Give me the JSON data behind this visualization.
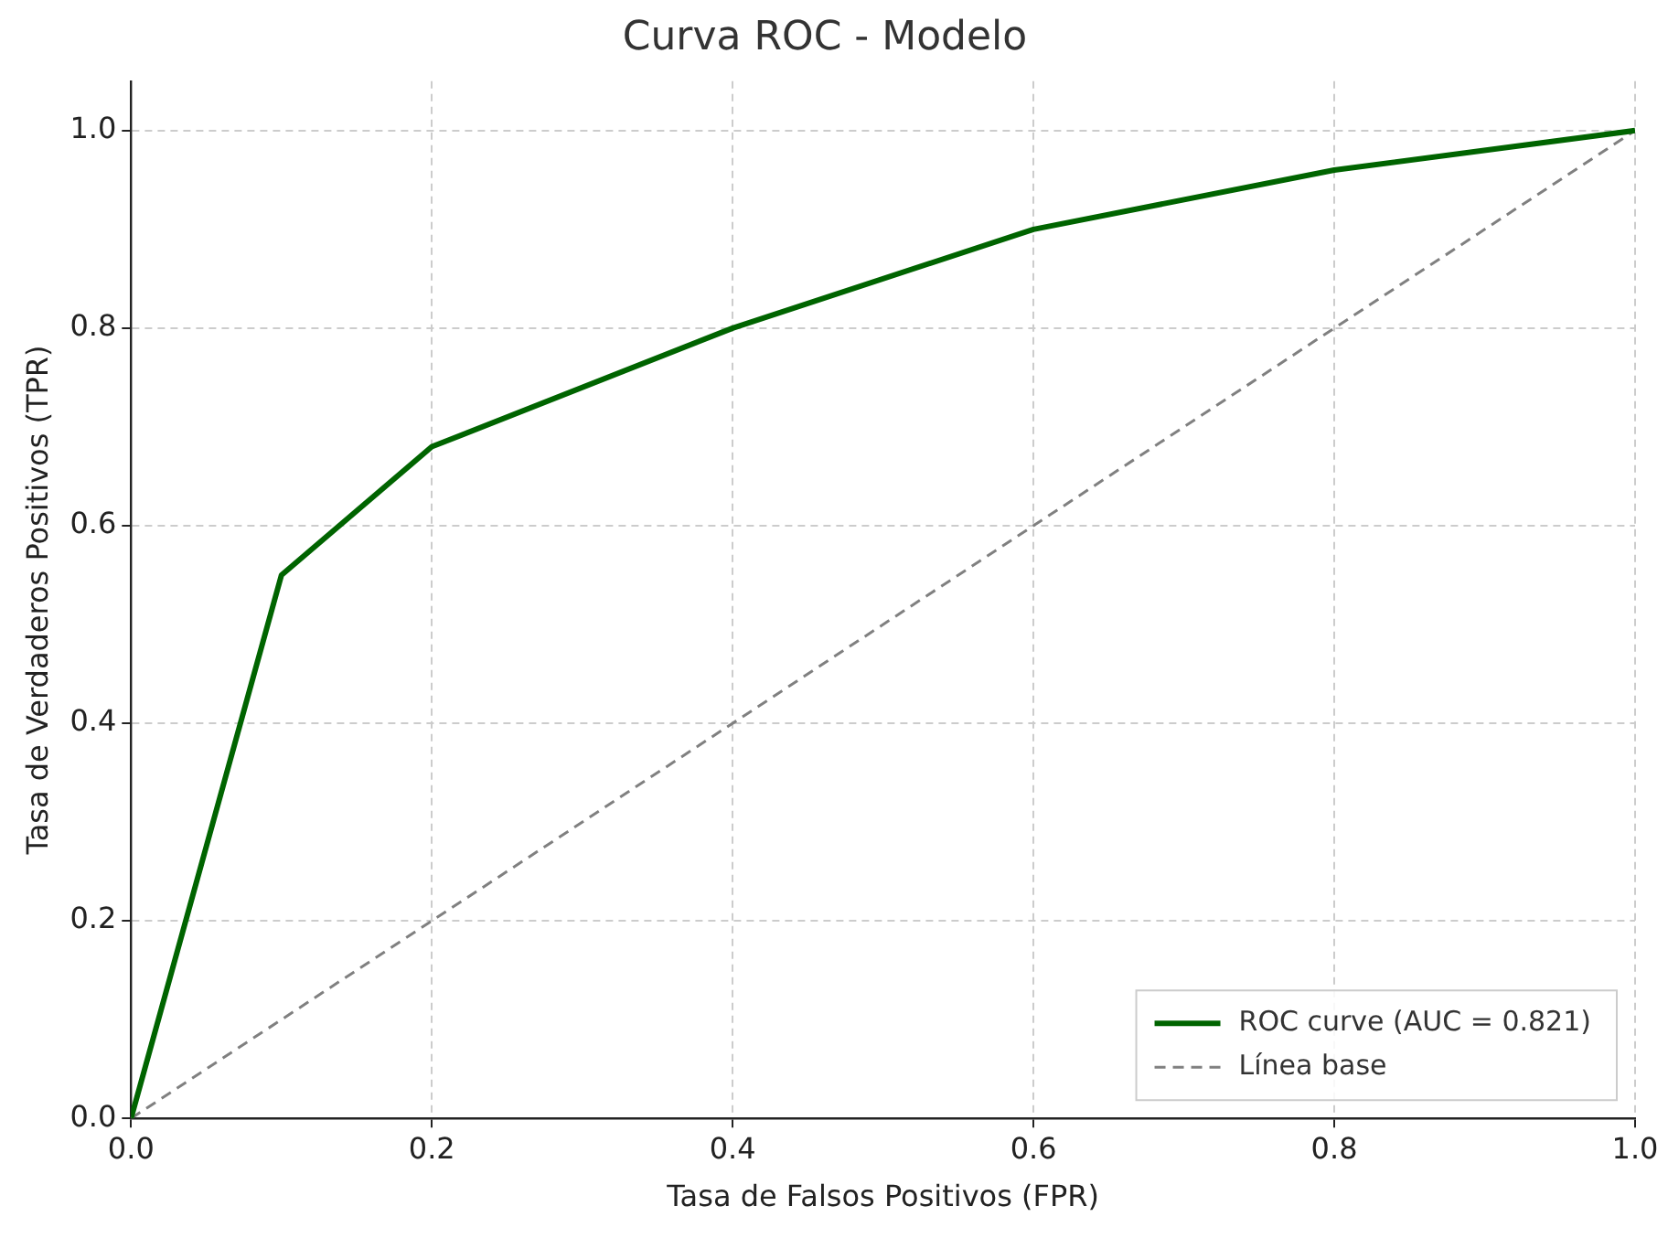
{
  "chart_data": {
    "type": "line",
    "title": "Curva ROC - Modelo",
    "xlabel": "Tasa de Falsos Positivos (FPR)",
    "ylabel": "Tasa de Verdaderos Positivos (TPR)",
    "series": [
      {
        "name": "ROC curve (AUC = 0.821)",
        "color": "#006400",
        "x": [
          0,
          0.1,
          0.2,
          0.4,
          0.6,
          0.8,
          1
        ],
        "values": [
          0,
          0.55,
          0.68,
          0.8,
          0.9,
          0.96,
          1
        ],
        "line_style": "solid"
      },
      {
        "name": "Línea base",
        "color": "#808080",
        "x": [
          0,
          1
        ],
        "values": [
          0,
          1
        ],
        "line_style": "dashed"
      }
    ],
    "xlim": [
      0,
      1
    ],
    "ylim": [
      0,
      1.05
    ],
    "xticks": [
      {
        "value": 0,
        "label": "0.0"
      },
      {
        "value": 0.2,
        "label": "0.2"
      },
      {
        "value": 0.4,
        "label": "0.4"
      },
      {
        "value": 0.6,
        "label": "0.6"
      },
      {
        "value": 0.8,
        "label": "0.8"
      },
      {
        "value": 1,
        "label": "1.0"
      }
    ],
    "yticks": [
      {
        "value": 0,
        "label": "0.0"
      },
      {
        "value": 0.2,
        "label": "0.2"
      },
      {
        "value": 0.4,
        "label": "0.4"
      },
      {
        "value": 0.6,
        "label": "0.6"
      },
      {
        "value": 0.8,
        "label": "0.8"
      },
      {
        "value": 1,
        "label": "1.0"
      }
    ],
    "grid": true,
    "legend": "bottom right",
    "marker": "none"
  }
}
